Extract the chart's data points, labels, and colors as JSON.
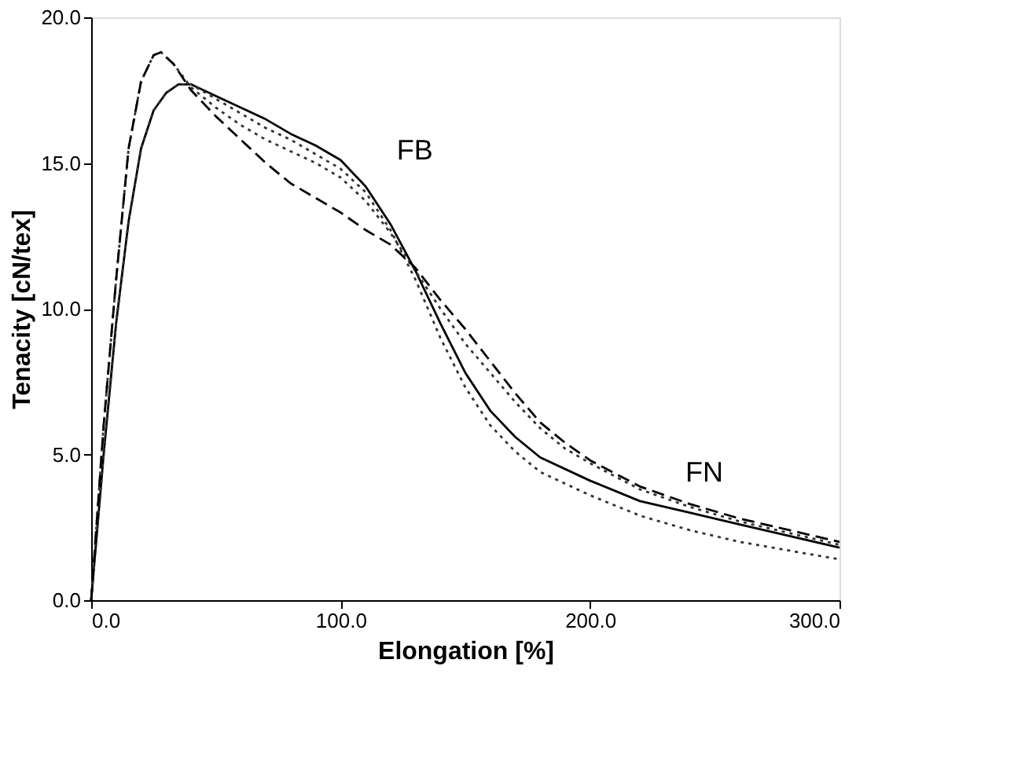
{
  "chart_data": {
    "type": "line",
    "xlabel": "Elongation [%]",
    "ylabel": "Tenacity [cN/tex]",
    "xlim": [
      0,
      300
    ],
    "ylim": [
      0,
      20
    ],
    "xticks": [
      {
        "value": 0,
        "label": "0.0"
      },
      {
        "value": 100,
        "label": "100.0"
      },
      {
        "value": 200,
        "label": "200.0"
      },
      {
        "value": 300,
        "label": "300.0"
      }
    ],
    "yticks": [
      {
        "value": 0,
        "label": "0.0"
      },
      {
        "value": 5,
        "label": "5.0"
      },
      {
        "value": 10,
        "label": "10.0"
      },
      {
        "value": 15,
        "label": "15.0"
      },
      {
        "value": 20,
        "label": "20.0"
      }
    ],
    "grid": false,
    "marker": "none",
    "series": [
      {
        "color": "#000000",
        "line_style": "solid",
        "x": [
          0,
          5,
          10,
          15,
          20,
          25,
          30,
          35,
          40,
          50,
          60,
          70,
          80,
          90,
          100,
          110,
          120,
          130,
          140,
          150,
          160,
          170,
          180,
          200,
          220,
          240,
          260,
          280,
          300
        ],
        "values": [
          0,
          5,
          9.5,
          13,
          15.5,
          16.8,
          17.4,
          17.7,
          17.7,
          17.3,
          16.9,
          16.5,
          16,
          15.6,
          15.1,
          14.2,
          12.9,
          11.3,
          9.5,
          7.8,
          6.5,
          5.6,
          4.9,
          4.1,
          3.4,
          3,
          2.6,
          2.2,
          1.8
        ]
      },
      {
        "color": "#333333",
        "line_style": "dotted",
        "x": [
          0,
          5,
          10,
          15,
          20,
          25,
          30,
          35,
          40,
          50,
          60,
          70,
          80,
          90,
          100,
          110,
          120,
          130,
          140,
          150,
          160,
          170,
          180,
          200,
          220,
          240,
          260,
          280,
          300
        ],
        "values": [
          0,
          5,
          9.5,
          13,
          15.5,
          16.8,
          17.4,
          17.7,
          17.7,
          17.2,
          16.7,
          16.2,
          15.8,
          15.3,
          14.8,
          14,
          12.7,
          11,
          9,
          7.3,
          6,
          5.1,
          4.4,
          3.6,
          2.9,
          2.4,
          2,
          1.7,
          1.4
        ]
      },
      {
        "color": "#333333",
        "line_style": "dotted",
        "x": [
          0,
          5,
          10,
          15,
          20,
          25,
          28,
          33,
          40,
          50,
          60,
          70,
          80,
          90,
          100,
          110,
          120,
          130,
          140,
          150,
          160,
          170,
          180,
          190,
          200,
          220,
          240,
          260,
          280,
          300
        ],
        "values": [
          0,
          6,
          11,
          15.5,
          17.8,
          18.7,
          18.8,
          18.4,
          17.6,
          16.9,
          16.3,
          15.8,
          15.4,
          15,
          14.5,
          13.7,
          12.6,
          11.3,
          10,
          8.8,
          7.8,
          6.8,
          5.9,
          5.2,
          4.7,
          3.8,
          3.2,
          2.7,
          2.3,
          1.9
        ]
      },
      {
        "color": "#000000",
        "line_style": "dashed",
        "x": [
          0,
          5,
          10,
          15,
          20,
          25,
          28,
          33,
          40,
          50,
          60,
          70,
          80,
          90,
          100,
          110,
          120,
          130,
          140,
          150,
          160,
          170,
          180,
          190,
          200,
          220,
          240,
          260,
          280,
          300
        ],
        "values": [
          0,
          6,
          11,
          15.5,
          17.8,
          18.7,
          18.8,
          18.4,
          17.5,
          16.6,
          15.8,
          15,
          14.3,
          13.8,
          13.3,
          12.7,
          12.2,
          11.4,
          10.3,
          9.3,
          8.2,
          7.1,
          6.1,
          5.4,
          4.8,
          3.9,
          3.3,
          2.8,
          2.4,
          2
        ]
      }
    ],
    "annotations": [
      "FB",
      "FN"
    ]
  }
}
